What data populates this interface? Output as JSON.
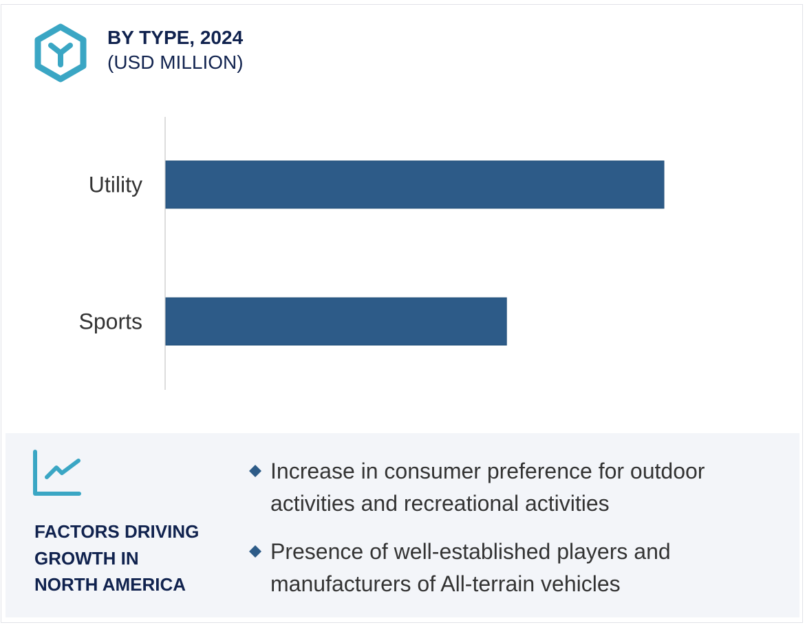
{
  "header": {
    "icon": "hexagon-y-icon",
    "title": "BY TYPE, 2024",
    "subtitle": "(USD MILLION)"
  },
  "colors": {
    "accent": "#3aa6c4",
    "navy": "#10224e",
    "bar": "#2d5b88",
    "panel_bg": "#f3f5f9",
    "text": "#333333"
  },
  "chart_data": {
    "type": "bar",
    "orientation": "horizontal",
    "title": "BY TYPE, 2024",
    "subtitle": "(USD MILLION)",
    "categories": [
      "Utility",
      "Sports"
    ],
    "values": [
      100,
      68.4
    ],
    "value_note": "relative bar lengths (Utility = 100); no axis ticks or data labels shown",
    "xlabel": "",
    "ylabel": "",
    "xlim": [
      0,
      100
    ],
    "grid": false,
    "legend": "none"
  },
  "factors": {
    "icon": "line-chart-icon",
    "title_lines": [
      "FACTORS DRIVING",
      "GROWTH IN",
      "NORTH AMERICA"
    ],
    "bullets": [
      "Increase in consumer preference for outdoor activities and recreational activities",
      "Presence of well-established players and manufacturers of All-terrain vehicles"
    ]
  }
}
